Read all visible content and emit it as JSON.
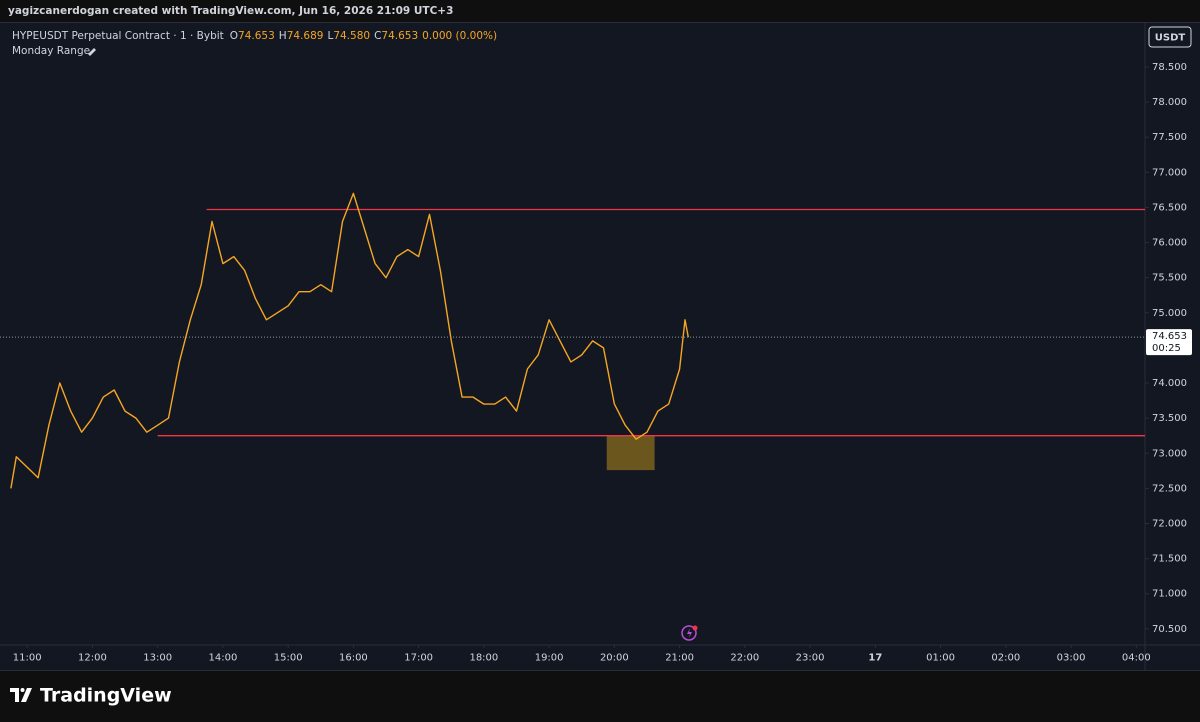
{
  "chart_data": {
    "type": "line",
    "credit": "yagizcanerdogan created with TradingView.com, Jun 16, 2026 21:09 UTC+3",
    "title": "HYPEUSDT Perpetual Contract · 1 · Bybit",
    "ohlc": [
      {
        "key": "O",
        "value": "74.653"
      },
      {
        "key": "H",
        "value": "74.689"
      },
      {
        "key": "L",
        "value": "74.580"
      },
      {
        "key": "C",
        "value": "74.653"
      }
    ],
    "change": "0.000 (0.00%)",
    "indicator": "Monday Range",
    "currency": "USDT",
    "countdown": "00:25",
    "brand": "TradingView",
    "x": [
      "2026-06-16T10:45",
      "2026-06-16T10:50",
      "2026-06-16T11:00",
      "2026-06-16T11:10",
      "2026-06-16T11:20",
      "2026-06-16T11:30",
      "2026-06-16T11:40",
      "2026-06-16T11:50",
      "2026-06-16T12:00",
      "2026-06-16T12:10",
      "2026-06-16T12:20",
      "2026-06-16T12:30",
      "2026-06-16T12:40",
      "2026-06-16T12:50",
      "2026-06-16T13:00",
      "2026-06-16T13:10",
      "2026-06-16T13:20",
      "2026-06-16T13:30",
      "2026-06-16T13:40",
      "2026-06-16T13:50",
      "2026-06-16T14:00",
      "2026-06-16T14:10",
      "2026-06-16T14:20",
      "2026-06-16T14:30",
      "2026-06-16T14:40",
      "2026-06-16T14:50",
      "2026-06-16T15:00",
      "2026-06-16T15:10",
      "2026-06-16T15:20",
      "2026-06-16T15:30",
      "2026-06-16T15:40",
      "2026-06-16T15:50",
      "2026-06-16T16:00",
      "2026-06-16T16:10",
      "2026-06-16T16:20",
      "2026-06-16T16:30",
      "2026-06-16T16:40",
      "2026-06-16T16:50",
      "2026-06-16T17:00",
      "2026-06-16T17:10",
      "2026-06-16T17:20",
      "2026-06-16T17:30",
      "2026-06-16T17:40",
      "2026-06-16T17:50",
      "2026-06-16T18:00",
      "2026-06-16T18:10",
      "2026-06-16T18:20",
      "2026-06-16T18:30",
      "2026-06-16T18:40",
      "2026-06-16T18:50",
      "2026-06-16T19:00",
      "2026-06-16T19:10",
      "2026-06-16T19:20",
      "2026-06-16T19:30",
      "2026-06-16T19:40",
      "2026-06-16T19:50",
      "2026-06-16T20:00",
      "2026-06-16T20:10",
      "2026-06-16T20:20",
      "2026-06-16T20:30",
      "2026-06-16T20:40",
      "2026-06-16T20:50",
      "2026-06-16T21:00",
      "2026-06-16T21:05",
      "2026-06-16T21:08"
    ],
    "series": [
      {
        "name": "HYPEUSDT",
        "color": "#f5a623",
        "values": [
          72.5,
          72.95,
          72.8,
          72.65,
          73.4,
          74.0,
          73.6,
          73.3,
          73.5,
          73.8,
          73.9,
          73.6,
          73.5,
          73.3,
          73.4,
          73.5,
          74.3,
          74.9,
          75.4,
          76.3,
          75.7,
          75.8,
          75.6,
          75.2,
          74.9,
          75.0,
          75.1,
          75.3,
          75.3,
          75.4,
          75.3,
          76.3,
          76.7,
          76.2,
          75.7,
          75.5,
          75.8,
          75.9,
          75.8,
          76.4,
          75.6,
          74.6,
          73.8,
          73.8,
          73.7,
          73.7,
          73.8,
          73.6,
          74.2,
          74.4,
          74.9,
          74.6,
          74.3,
          74.4,
          74.6,
          74.5,
          73.7,
          73.4,
          73.2,
          73.3,
          73.6,
          73.7,
          74.2,
          74.9,
          74.653
        ]
      }
    ],
    "levels": [
      {
        "start": "2026-06-16T13:45",
        "value": 76.47,
        "color": "#f23645"
      },
      {
        "start": "2026-06-16T13:00",
        "value": 73.25,
        "color": "#f23645"
      }
    ],
    "zone": {
      "x": [
        "2026-06-16T19:53",
        "2026-06-16T20:37"
      ],
      "y": [
        72.76,
        73.25
      ],
      "color": "#8a6d1e"
    },
    "xlim": [
      "2026-06-16T10:35",
      "2026-06-17T04:08"
    ],
    "xticks": [
      {
        "value": "2026-06-16T11:00",
        "label": "11:00"
      },
      {
        "value": "2026-06-16T12:00",
        "label": "12:00"
      },
      {
        "value": "2026-06-16T13:00",
        "label": "13:00"
      },
      {
        "value": "2026-06-16T14:00",
        "label": "14:00"
      },
      {
        "value": "2026-06-16T15:00",
        "label": "15:00"
      },
      {
        "value": "2026-06-16T16:00",
        "label": "16:00"
      },
      {
        "value": "2026-06-16T17:00",
        "label": "17:00"
      },
      {
        "value": "2026-06-16T18:00",
        "label": "18:00"
      },
      {
        "value": "2026-06-16T19:00",
        "label": "19:00"
      },
      {
        "value": "2026-06-16T20:00",
        "label": "20:00"
      },
      {
        "value": "2026-06-16T21:00",
        "label": "21:00"
      },
      {
        "value": "2026-06-16T22:00",
        "label": "22:00"
      },
      {
        "value": "2026-06-16T23:00",
        "label": "23:00"
      },
      {
        "value": "2026-06-17T00:00",
        "label": "17"
      },
      {
        "value": "2026-06-17T01:00",
        "label": "01:00"
      },
      {
        "value": "2026-06-17T02:00",
        "label": "02:00"
      },
      {
        "value": "2026-06-17T03:00",
        "label": "03:00"
      },
      {
        "value": "2026-06-17T04:00",
        "label": "04:00"
      }
    ],
    "ylim": [
      70.27,
      79.14
    ],
    "yticks": [
      {
        "value": 70.5,
        "label": "70.500"
      },
      {
        "value": 71,
        "label": "71.000"
      },
      {
        "value": 71.5,
        "label": "71.500"
      },
      {
        "value": 72,
        "label": "72.000"
      },
      {
        "value": 72.5,
        "label": "72.500"
      },
      {
        "value": 73,
        "label": "73.000"
      },
      {
        "value": 73.5,
        "label": "73.500"
      },
      {
        "value": 74,
        "label": "74.000"
      },
      {
        "value": 74.5,
        "label": "74.500"
      },
      {
        "value": 75,
        "label": "75.000"
      },
      {
        "value": 75.5,
        "label": "75.500"
      },
      {
        "value": 76,
        "label": "76.000"
      },
      {
        "value": 76.5,
        "label": "76.500"
      },
      {
        "value": 77,
        "label": "77.000"
      },
      {
        "value": 77.5,
        "label": "77.500"
      },
      {
        "value": 78,
        "label": "78.000"
      },
      {
        "value": 78.5,
        "label": "78.500"
      }
    ]
  }
}
